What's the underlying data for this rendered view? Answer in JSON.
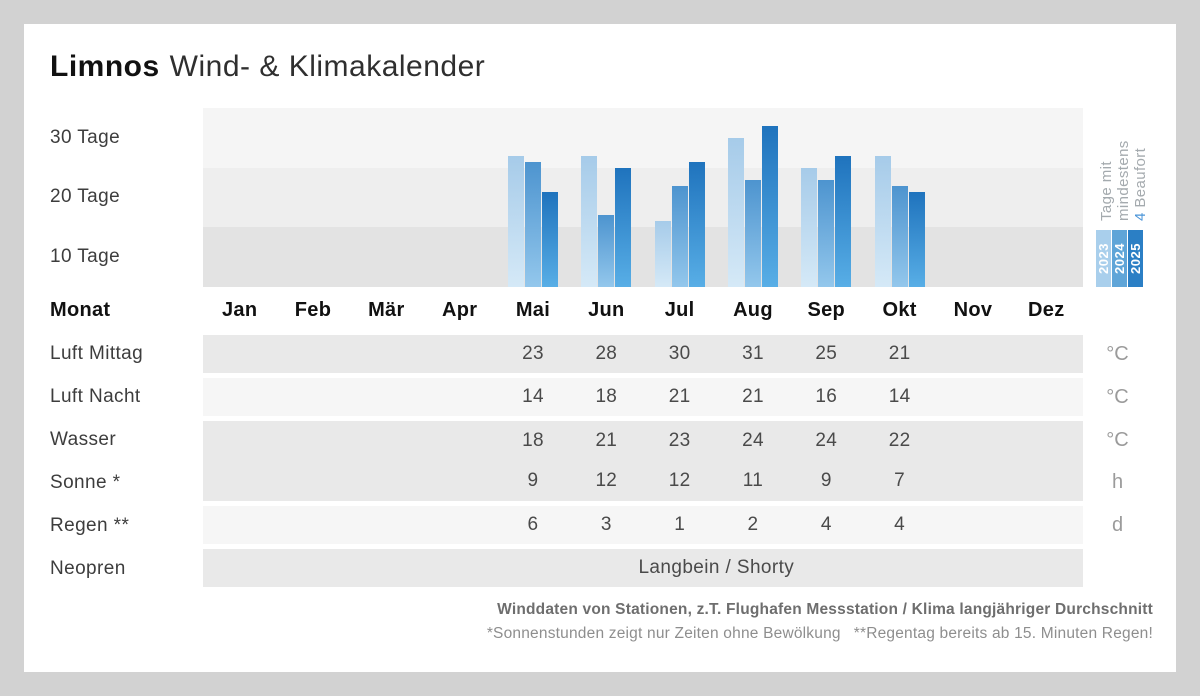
{
  "title": {
    "brand": "Limnos",
    "subtitle": "Wind- & Klimakalender"
  },
  "colors": {
    "page_background": "#d2d2d2",
    "card_background": "#ffffff",
    "chart_bands": [
      "#f5f5f5",
      "#eeeeee",
      "#e3e3e3"
    ],
    "table_band_grey": "#e9e9e9",
    "table_band_light": "#f6f6f6",
    "legend_text_grey": "#a4aaae",
    "legend_accent_blue": "#4a94d8"
  },
  "chart_data": {
    "type": "bar",
    "title": "Tage mit mindestens 4 Beaufort",
    "ylabel": "Tage",
    "ylim": [
      0,
      30
    ],
    "grid": "banded",
    "y_axis_labels": [
      "30 Tage",
      "20 Tage",
      "10 Tage"
    ],
    "categories": [
      "Jan",
      "Feb",
      "Mär",
      "Apr",
      "Mai",
      "Jun",
      "Jul",
      "Aug",
      "Sep",
      "Okt",
      "Nov",
      "Dez"
    ],
    "series": [
      {
        "name": "2023",
        "chip_color": "#a9cfec",
        "bar_top": "#a6cbe9",
        "bar_bottom": "#d5e9f7",
        "values": [
          null,
          null,
          null,
          null,
          22,
          22,
          11,
          25,
          20,
          22,
          null,
          null
        ]
      },
      {
        "name": "2024",
        "chip_color": "#5fa5d8",
        "bar_top": "#4d94cf",
        "bar_bottom": "#93c7ec",
        "values": [
          null,
          null,
          null,
          null,
          21,
          12,
          17,
          18,
          18,
          17,
          null,
          null
        ]
      },
      {
        "name": "2025",
        "chip_color": "#2b7fc5",
        "bar_top": "#1f73bd",
        "bar_bottom": "#58aee6",
        "values": [
          null,
          null,
          null,
          null,
          16,
          20,
          21,
          27,
          22,
          16,
          null,
          null
        ]
      }
    ],
    "legend": {
      "lines": [
        "Tage mit",
        "mindestens"
      ],
      "line3_number": "4",
      "line3_text": " Beaufort",
      "position": "right-rotated"
    }
  },
  "table": {
    "header_label": "Monat",
    "months": [
      "Jan",
      "Feb",
      "Mär",
      "Apr",
      "Mai",
      "Jun",
      "Jul",
      "Aug",
      "Sep",
      "Okt",
      "Nov",
      "Dez"
    ],
    "rows": [
      {
        "label": "Luft Mittag",
        "unit": "°C",
        "band": "grey",
        "values": [
          null,
          null,
          null,
          null,
          23,
          28,
          30,
          31,
          25,
          21,
          null,
          null
        ]
      },
      {
        "label": "Luft Nacht",
        "unit": "°C",
        "band": "light",
        "values": [
          null,
          null,
          null,
          null,
          14,
          18,
          21,
          21,
          16,
          14,
          null,
          null
        ]
      },
      {
        "label": "Wasser",
        "unit": "°C",
        "band": "grey",
        "merge_below": true,
        "values": [
          null,
          null,
          null,
          null,
          18,
          21,
          23,
          24,
          24,
          22,
          null,
          null
        ]
      },
      {
        "label": "Sonne *",
        "unit": "h",
        "band": "grey",
        "merge_above": true,
        "values": [
          null,
          null,
          null,
          null,
          9,
          12,
          12,
          11,
          9,
          7,
          null,
          null
        ]
      },
      {
        "label": "Regen **",
        "unit": "d",
        "band": "light",
        "values": [
          null,
          null,
          null,
          null,
          6,
          3,
          1,
          2,
          4,
          4,
          null,
          null
        ]
      },
      {
        "label": "Neopren",
        "unit": "",
        "band": "grey",
        "span_text": "Langbein / Shorty",
        "span_cols": [
          4,
          10
        ],
        "values": []
      }
    ]
  },
  "footer": {
    "source": "Winddaten von Stationen, z.T. Flughafen Messstation / Klima langjähriger Durchschnitt",
    "note_sun": "*Sonnenstunden zeigt nur Zeiten ohne Bewölkung",
    "note_rain": "**Regentag bereits ab 15. Minuten Regen!"
  }
}
